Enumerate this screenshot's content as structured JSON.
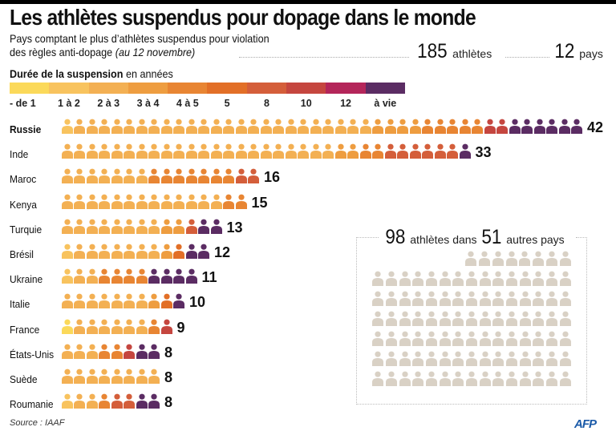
{
  "header": {
    "title": "Les athlètes suspendus pour dopage dans le monde",
    "subtitle_line1": "Pays comptant le plus d’athlètes suspendus pour violation",
    "subtitle_line2": "des règles anti-dopage",
    "date_note": "(au 12 novembre)",
    "total_athletes": "185",
    "total_athletes_label": "athlètes",
    "total_countries": "12",
    "total_countries_label": "pays"
  },
  "legend": {
    "title_bold": "Durée de la suspension",
    "title_rest": " en années",
    "categories": [
      {
        "label": "- de 1",
        "color": "#fbd95a"
      },
      {
        "label": "1 à 2",
        "color": "#f8c35e"
      },
      {
        "label": "2 à 3",
        "color": "#f3b053"
      },
      {
        "label": "3 à 4",
        "color": "#ee9d40"
      },
      {
        "label": "4 à 5",
        "color": "#e88533"
      },
      {
        "label": "5",
        "color": "#e26f27"
      },
      {
        "label": "8",
        "color": "#d45e3a"
      },
      {
        "label": "10",
        "color": "#c5463f"
      },
      {
        "label": "12",
        "color": "#b4265a"
      },
      {
        "label": "à vie",
        "color": "#5b2c63"
      }
    ]
  },
  "chart_data": {
    "type": "table",
    "title": "Les athlètes suspendus pour dopage dans le monde",
    "subtitle": "Pays comptant le plus d’athlètes suspendus pour violation des règles anti-dopage (au 12 novembre)",
    "categories": [
      "- de 1",
      "1 à 2",
      "2 à 3",
      "3 à 4",
      "4 à 5",
      "5",
      "8",
      "10",
      "12",
      "à vie"
    ],
    "unit": "athlètes (1 icône = 1 athlète)",
    "series": [
      {
        "name": "Russie",
        "total": 42,
        "bold": true,
        "values": [
          0,
          1,
          24,
          4,
          5,
          0,
          0,
          2,
          0,
          6
        ]
      },
      {
        "name": "Inde",
        "total": 33,
        "values": [
          0,
          0,
          22,
          2,
          2,
          0,
          6,
          0,
          0,
          1
        ]
      },
      {
        "name": "Maroc",
        "total": 16,
        "values": [
          0,
          0,
          7,
          0,
          7,
          0,
          2,
          0,
          0,
          0
        ]
      },
      {
        "name": "Kenya",
        "total": 15,
        "values": [
          0,
          0,
          13,
          0,
          2,
          0,
          0,
          0,
          0,
          0
        ]
      },
      {
        "name": "Turquie",
        "total": 13,
        "values": [
          0,
          0,
          8,
          2,
          0,
          0,
          1,
          0,
          0,
          2
        ]
      },
      {
        "name": "Brésil",
        "total": 12,
        "values": [
          0,
          1,
          7,
          1,
          0,
          1,
          0,
          0,
          0,
          2
        ]
      },
      {
        "name": "Ukraine",
        "total": 11,
        "values": [
          0,
          1,
          2,
          0,
          4,
          0,
          0,
          0,
          0,
          4
        ]
      },
      {
        "name": "Italie",
        "total": 10,
        "values": [
          0,
          0,
          7,
          1,
          0,
          1,
          0,
          0,
          0,
          1
        ]
      },
      {
        "name": "France",
        "total": 9,
        "values": [
          1,
          0,
          6,
          0,
          1,
          0,
          0,
          1,
          0,
          0
        ]
      },
      {
        "name": "États-Unis",
        "total": 8,
        "values": [
          0,
          0,
          3,
          0,
          2,
          0,
          0,
          1,
          0,
          2
        ]
      },
      {
        "name": "Suède",
        "total": 8,
        "values": [
          0,
          0,
          8,
          0,
          0,
          0,
          0,
          0,
          0,
          0
        ]
      },
      {
        "name": "Roumanie",
        "total": 8,
        "values": [
          0,
          1,
          2,
          0,
          1,
          0,
          2,
          0,
          0,
          2
        ]
      }
    ],
    "others": {
      "athletes": 98,
      "countries": 51,
      "color": "#d9d1c5"
    }
  },
  "others": {
    "athletes": "98",
    "mid_text": "athlètes dans",
    "countries": "51",
    "end_text": "autres pays"
  },
  "footer": {
    "source": "Source : IAAF",
    "logo": "AFP"
  }
}
